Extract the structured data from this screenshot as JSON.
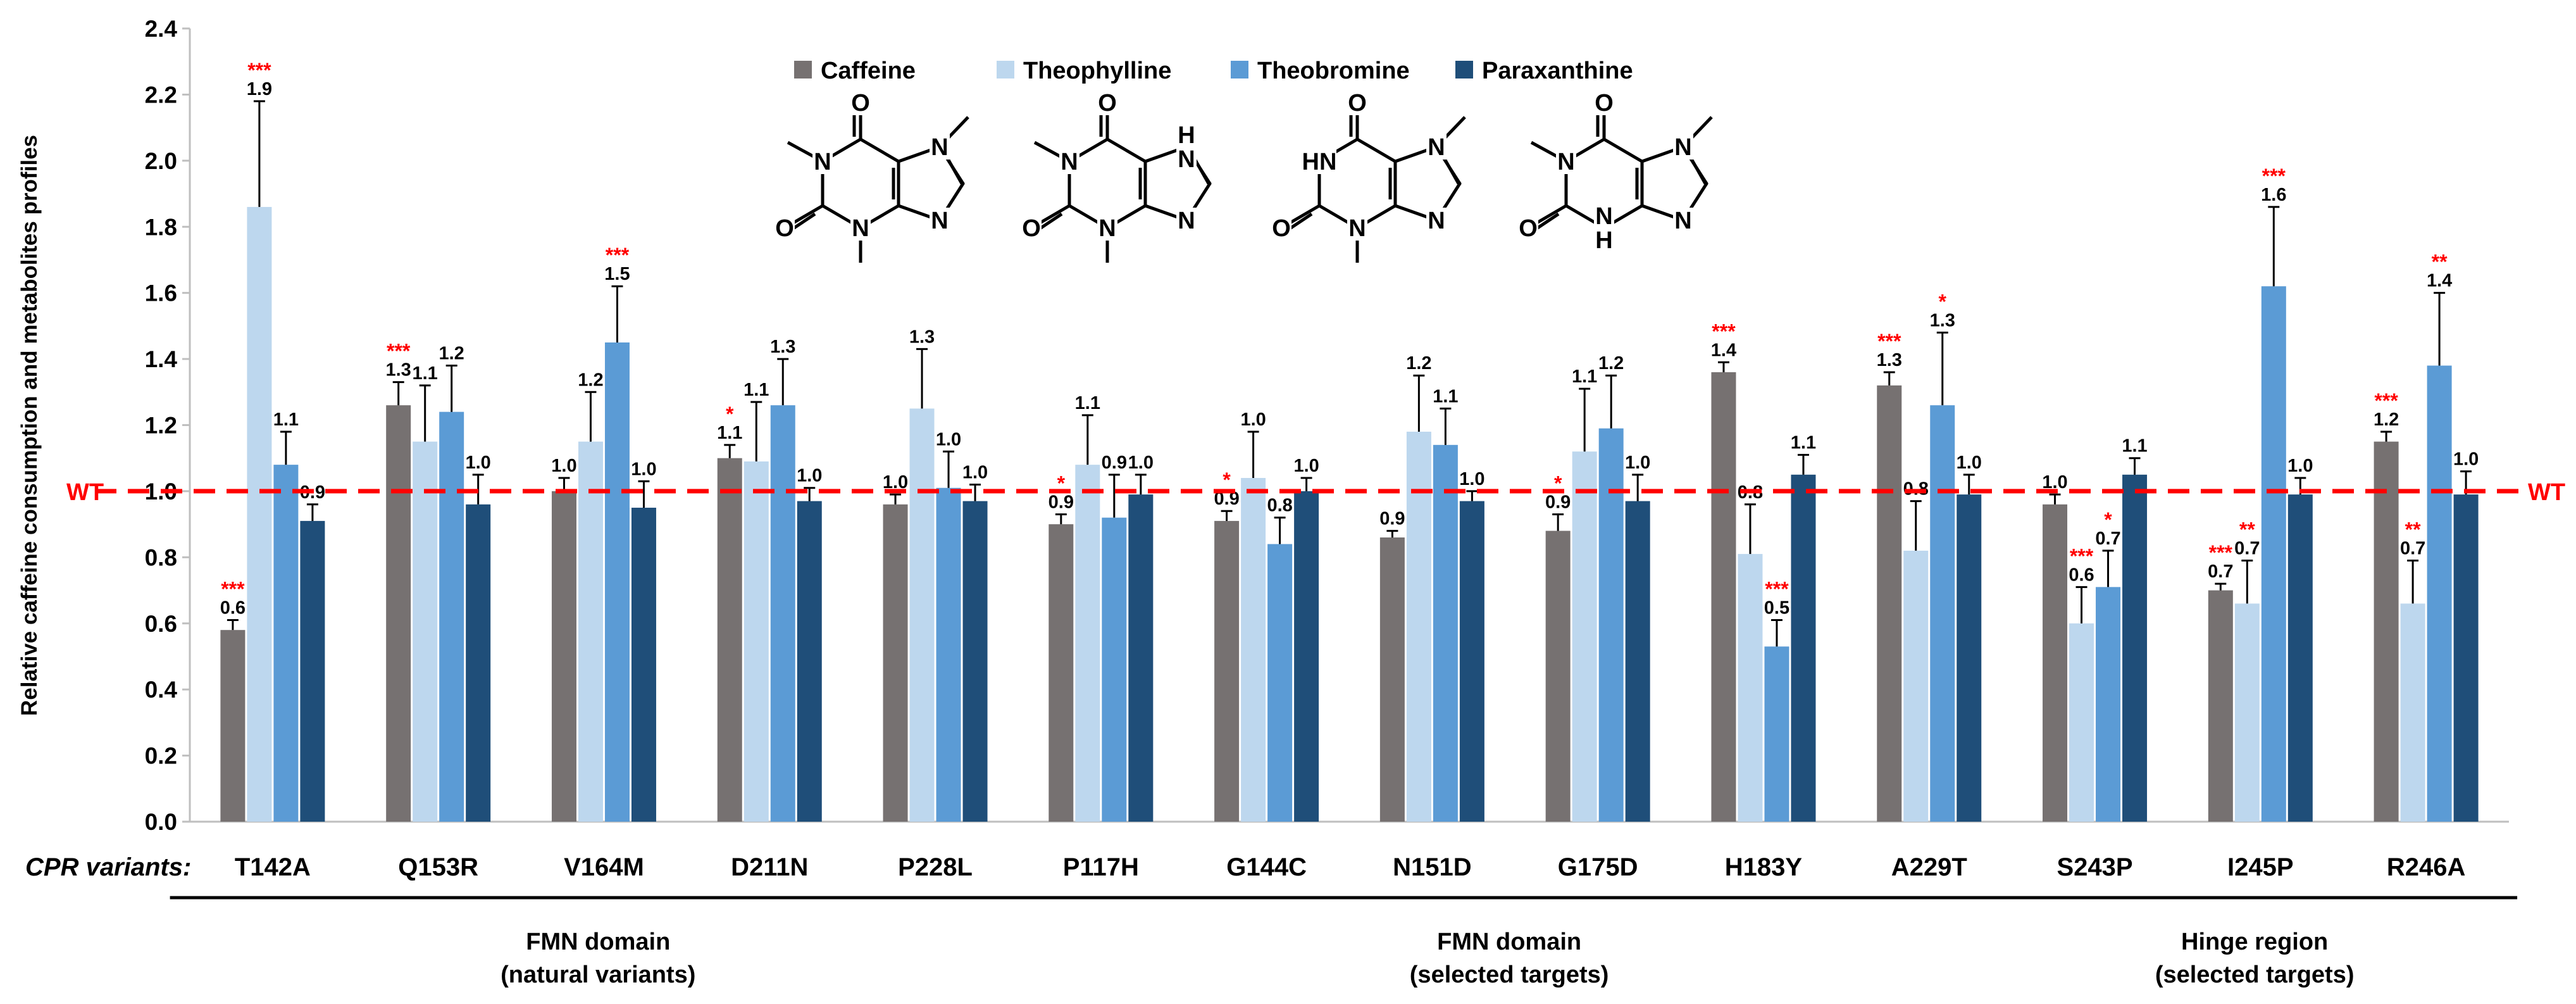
{
  "chart_data": {
    "type": "bar",
    "title": "",
    "ylabel": "Relative caffeine consumption and metabolites profiles",
    "xlabel_prefix": "CPR variants:",
    "ylim": [
      0.0,
      2.4
    ],
    "yticks": [
      "0.0",
      "0.2",
      "0.4",
      "0.6",
      "0.8",
      "1.0",
      "1.2",
      "1.4",
      "1.6",
      "1.8",
      "2.0",
      "2.2",
      "2.4"
    ],
    "reference_line": {
      "value": 1.0,
      "label_left": "WT",
      "label_right": "WT",
      "color": "#FF0000"
    },
    "categories": [
      "T142A",
      "Q153R",
      "V164M",
      "D211N",
      "P228L",
      "P117H",
      "G144C",
      "N151D",
      "G175D",
      "H183Y",
      "A229T",
      "S243P",
      "I245P",
      "R246A"
    ],
    "series": [
      {
        "name": "Caffeine",
        "color": "#767171",
        "values": [
          0.58,
          1.26,
          1.0,
          1.1,
          0.96,
          0.9,
          0.91,
          0.86,
          0.88,
          1.36,
          1.32,
          0.96,
          0.7,
          1.15
        ],
        "errors": [
          0.03,
          0.07,
          0.04,
          0.04,
          0.03,
          0.03,
          0.03,
          0.02,
          0.05,
          0.03,
          0.04,
          0.03,
          0.02,
          0.03
        ],
        "labels": [
          "0.6",
          "1.3",
          "1.0",
          "1.1",
          "1.0",
          "0.9",
          "0.9",
          "0.9",
          "0.9",
          "1.4",
          "1.3",
          "1.0",
          "0.7",
          "1.2"
        ],
        "sig": [
          "***",
          "***",
          "",
          "*",
          "",
          "*",
          "*",
          "",
          "*",
          "***",
          "***",
          "",
          "***",
          "***"
        ]
      },
      {
        "name": "Theophylline",
        "color": "#BDD7EE",
        "values": [
          1.86,
          1.15,
          1.15,
          1.09,
          1.25,
          1.08,
          1.04,
          1.18,
          1.12,
          0.81,
          0.82,
          0.6,
          0.66,
          0.66
        ],
        "errors": [
          0.32,
          0.17,
          0.15,
          0.18,
          0.18,
          0.15,
          0.14,
          0.17,
          0.19,
          0.15,
          0.15,
          0.11,
          0.13,
          0.13
        ],
        "labels": [
          "1.9",
          "1.1",
          "1.2",
          "1.1",
          "1.3",
          "1.1",
          "1.0",
          "1.2",
          "1.1",
          "0.8",
          "0.8",
          "0.6",
          "0.7",
          "0.7"
        ],
        "sig": [
          "***",
          "",
          "",
          "",
          "",
          "",
          "",
          "",
          "",
          "",
          "",
          "***",
          "**",
          "**"
        ]
      },
      {
        "name": "Theobromine",
        "color": "#5B9BD5",
        "values": [
          1.08,
          1.24,
          1.45,
          1.26,
          1.01,
          0.92,
          0.84,
          1.14,
          1.19,
          0.53,
          1.26,
          0.71,
          1.62,
          1.38
        ],
        "errors": [
          0.1,
          0.14,
          0.17,
          0.14,
          0.11,
          0.13,
          0.08,
          0.11,
          0.16,
          0.08,
          0.22,
          0.11,
          0.24,
          0.22
        ],
        "labels": [
          "1.1",
          "1.2",
          "1.5",
          "1.3",
          "1.0",
          "0.9",
          "0.8",
          "1.1",
          "1.2",
          "0.5",
          "1.3",
          "0.7",
          "1.6",
          "1.4"
        ],
        "sig": [
          "",
          "",
          "***",
          "",
          "",
          "",
          "",
          "",
          "",
          "***",
          "*",
          "*",
          "***",
          "**"
        ]
      },
      {
        "name": "Paraxanthine",
        "color": "#1F4E79",
        "values": [
          0.91,
          0.96,
          0.95,
          0.97,
          0.97,
          0.99,
          1.0,
          0.97,
          0.97,
          1.05,
          0.99,
          1.05,
          0.99,
          0.99
        ],
        "errors": [
          0.05,
          0.09,
          0.08,
          0.04,
          0.05,
          0.06,
          0.04,
          0.03,
          0.08,
          0.06,
          0.06,
          0.05,
          0.05,
          0.07
        ],
        "labels": [
          "0.9",
          "1.0",
          "1.0",
          "1.0",
          "1.0",
          "1.0",
          "1.0",
          "1.0",
          "1.0",
          "1.1",
          "1.0",
          "1.1",
          "1.0",
          "1.0"
        ],
        "sig": [
          "",
          "",
          "",
          "",
          "",
          "",
          "",
          "",
          "",
          "",
          "",
          "",
          "",
          ""
        ]
      }
    ],
    "legend": {
      "placement": "top-center",
      "entries": [
        "Caffeine",
        "Theophylline",
        "Theobromine",
        "Paraxanthine"
      ]
    },
    "groups": [
      {
        "line1": "FMN domain",
        "line2": "(natural variants)",
        "from": 0,
        "to": 4
      },
      {
        "line1": "FMN domain",
        "line2": "(selected targets)",
        "from": 5,
        "to": 10
      },
      {
        "line1": "Hinge region",
        "line2": "(selected targets)",
        "from": 11,
        "to": 13
      }
    ],
    "structures": [
      {
        "name": "caffeine-structure",
        "n1": "N",
        "n3": "N",
        "n7": "N",
        "n9": "N",
        "o2": "O",
        "o6": "O"
      },
      {
        "name": "theophylline-structure",
        "n1": "N",
        "n3": "N",
        "n7": "H\nN",
        "n9": "N",
        "o2": "O",
        "o6": "O"
      },
      {
        "name": "theobromine-structure",
        "n1": "HN",
        "n3": "N",
        "n7": "N",
        "n9": "N",
        "o2": "O",
        "o6": "O"
      },
      {
        "name": "paraxanthine-structure",
        "n1": "N",
        "n3": "N\nH",
        "n7": "N",
        "n9": "N",
        "o2": "O",
        "o6": "O"
      }
    ]
  }
}
